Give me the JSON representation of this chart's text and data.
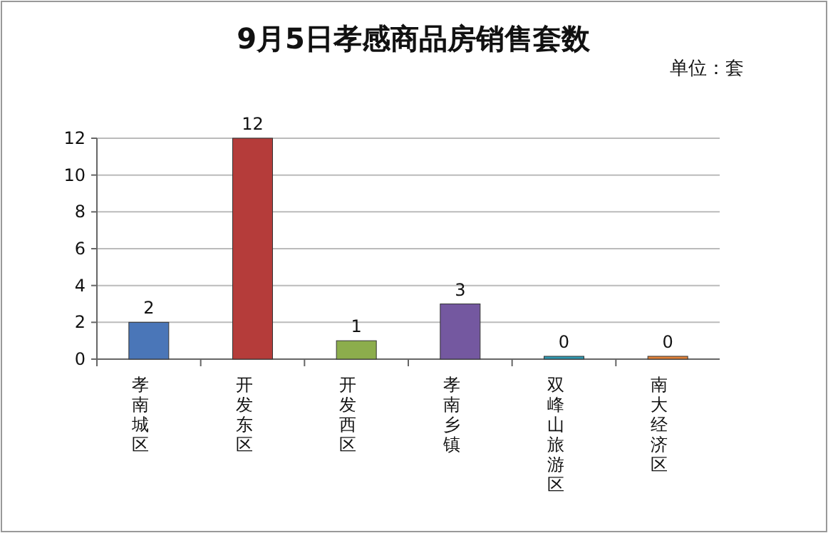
{
  "chart_data": {
    "type": "bar",
    "title": "9月5日孝感商品房销售套数",
    "subtitle": "单位：套",
    "categories": [
      "孝南城区",
      "开发东区",
      "开发西区",
      "孝南乡镇",
      "双峰山旅游区",
      "南大经济区"
    ],
    "values": [
      2,
      12,
      1,
      3,
      0,
      0
    ],
    "colors": [
      "#4a76b8",
      "#b53c3a",
      "#8cad4c",
      "#7458a0",
      "#3198b0",
      "#e0823a"
    ],
    "ylim": [
      0,
      12
    ],
    "yticks": [
      0,
      2,
      4,
      6,
      8,
      10,
      12
    ],
    "grid": "y",
    "data_labels": true
  }
}
